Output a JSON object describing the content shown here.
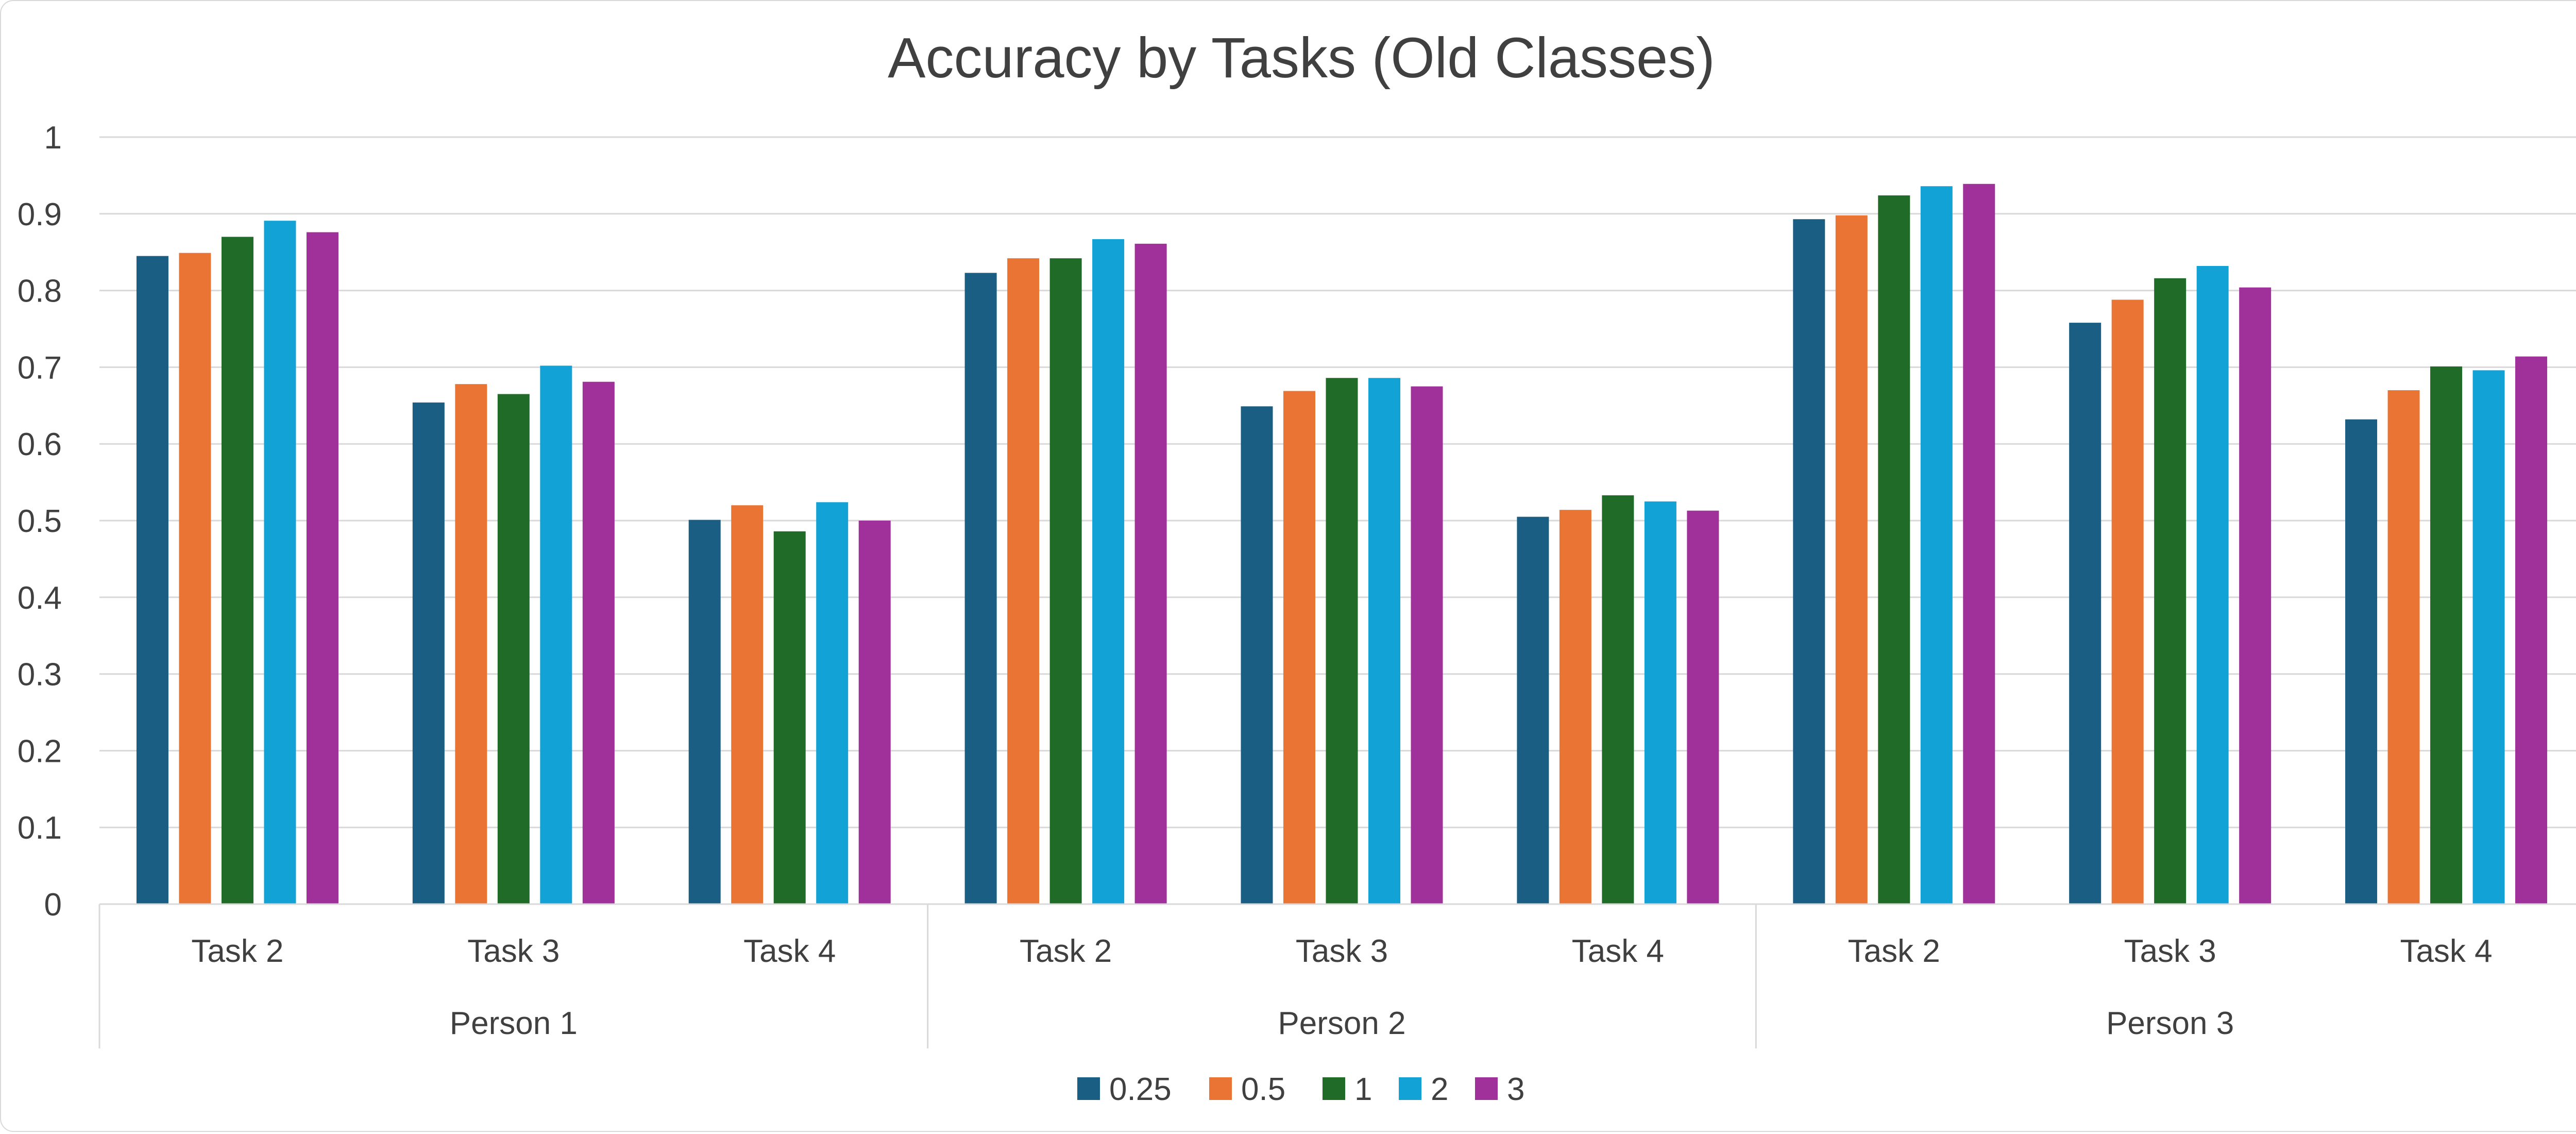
{
  "chart_data": {
    "type": "bar",
    "title": "Accuracy by Tasks (Old Classes)",
    "xlabel": "",
    "ylabel": "",
    "ylim": [
      0,
      1
    ],
    "yticks": [
      "0",
      "0.1",
      "0.2",
      "0.3",
      "0.4",
      "0.5",
      "0.6",
      "0.7",
      "0.8",
      "0.9",
      "1"
    ],
    "grid": true,
    "legend_position": "bottom",
    "groups": [
      "Person 1",
      "Person 2",
      "Person 3"
    ],
    "categories": [
      "Task 2",
      "Task 3",
      "Task 4",
      "Task 2",
      "Task 3",
      "Task 4",
      "Task 2",
      "Task 3",
      "Task 4"
    ],
    "series": [
      {
        "name": "0.25",
        "color": "#1a5e83",
        "values": [
          0.845,
          0.654,
          0.501,
          0.823,
          0.649,
          0.505,
          0.893,
          0.758,
          0.632
        ]
      },
      {
        "name": "0.5",
        "color": "#ea7434",
        "values": [
          0.849,
          0.678,
          0.52,
          0.842,
          0.669,
          0.514,
          0.898,
          0.788,
          0.67
        ]
      },
      {
        "name": "1",
        "color": "#1f6b27",
        "values": [
          0.87,
          0.665,
          0.486,
          0.842,
          0.686,
          0.533,
          0.924,
          0.816,
          0.701
        ]
      },
      {
        "name": "2",
        "color": "#13a2d6",
        "values": [
          0.891,
          0.702,
          0.524,
          0.867,
          0.686,
          0.525,
          0.936,
          0.832,
          0.696
        ]
      },
      {
        "name": "3",
        "color": "#a0309a",
        "values": [
          0.876,
          0.681,
          0.5,
          0.861,
          0.675,
          0.513,
          0.939,
          0.804,
          0.714
        ]
      }
    ]
  }
}
